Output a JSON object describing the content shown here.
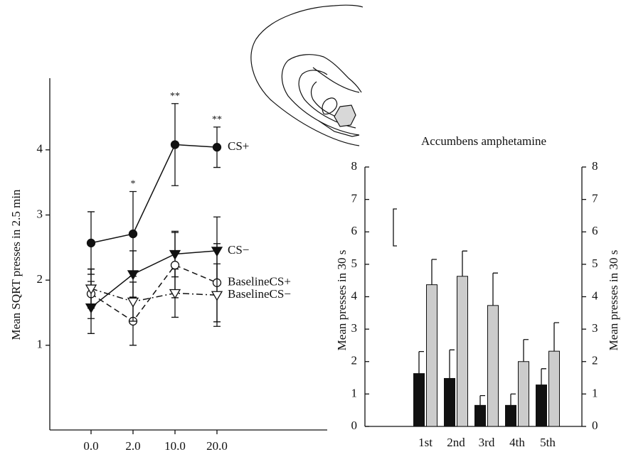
{
  "chart_data": [
    {
      "type": "line",
      "ylabel": "Mean SQRT presses in 2.5 min",
      "categories": [
        "0.0",
        "2.0",
        "10.0",
        "20.0"
      ],
      "ylim": [
        -0.3,
        5.1
      ],
      "yticks": [
        1,
        2,
        3,
        4
      ],
      "markers": [
        null,
        "*",
        "**",
        "**"
      ],
      "series": [
        {
          "name": "CS+",
          "color": "#111111",
          "marker": "circle",
          "filled": true,
          "line_style": "solid",
          "values": [
            2.57,
            2.71,
            4.08,
            4.04
          ],
          "errors": [
            0.48,
            0.65,
            0.63,
            0.31
          ]
        },
        {
          "name": "CS−",
          "color": "#111111",
          "marker": "triangle-down",
          "filled": true,
          "line_style": "solid",
          "values": [
            1.58,
            2.09,
            2.4,
            2.45
          ],
          "errors": [
            0.4,
            0.36,
            0.35,
            0.52
          ]
        },
        {
          "name": "BaselineCS+",
          "color": "#111111",
          "marker": "circle",
          "filled": false,
          "line_style": "dashed",
          "values": [
            1.79,
            1.37,
            2.23,
            1.96
          ],
          "errors": [
            0.38,
            0.37,
            0.5,
            0.6
          ]
        },
        {
          "name": "BaselineCS−",
          "color": "#111111",
          "marker": "triangle-down",
          "filled": false,
          "line_style": "dashdot",
          "values": [
            1.87,
            1.67,
            1.8,
            1.77
          ],
          "errors": [
            0.3,
            0.3,
            0.37,
            0.48
          ]
        }
      ]
    },
    {
      "type": "bar",
      "title": "Accumbens amphetamine",
      "ylabel": "Mean presses in 30 s",
      "y2label": "Mean presses in 30 s",
      "categories": [
        "1st",
        "2nd",
        "3rd",
        "4th",
        "5th"
      ],
      "ylim": [
        0,
        8
      ],
      "yticks": [
        0,
        1,
        2,
        3,
        4,
        5,
        6,
        7,
        8
      ],
      "y2lim": [
        0,
        8
      ],
      "y2ticks": [
        0,
        1,
        2,
        3,
        4,
        5,
        6,
        7,
        8
      ],
      "series": [
        {
          "color": "#111111",
          "values": [
            1.63,
            1.48,
            0.65,
            0.65,
            1.28
          ],
          "errors": [
            0.68,
            0.88,
            0.3,
            0.35,
            0.5
          ]
        },
        {
          "color": "#cccccc",
          "values": [
            4.37,
            4.63,
            3.73,
            2.0,
            2.32
          ],
          "errors": [
            0.78,
            0.78,
            1.0,
            0.68,
            0.88
          ]
        }
      ]
    }
  ]
}
